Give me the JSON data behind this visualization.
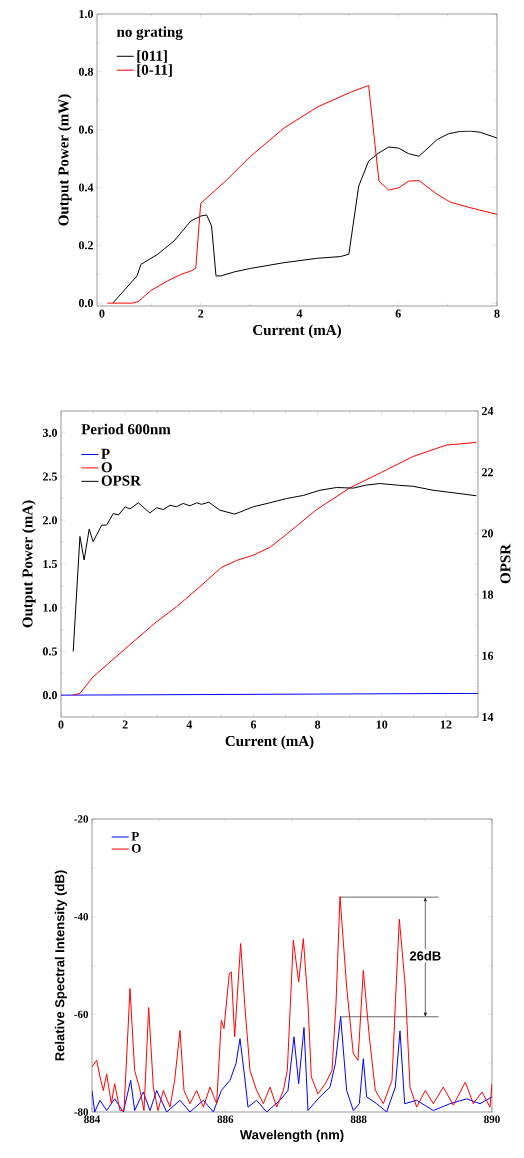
{
  "chart_data": [
    {
      "type": "line",
      "xlabel": "Current (mA)",
      "ylabel": "Output Power (mW)",
      "legend_title": "no grating",
      "legend": "top left",
      "xlim": [
        -0.1,
        8
      ],
      "ylim": [
        -0.01,
        1.0
      ],
      "xticks": [
        0,
        2,
        4,
        6,
        8
      ],
      "yticks": [
        {
          "value": 0,
          "label": "0.0"
        },
        {
          "value": 0.2,
          "label": "0.2"
        },
        {
          "value": 0.4,
          "label": "0.4"
        },
        {
          "value": 0.6,
          "label": "0.6"
        },
        {
          "value": 0.8,
          "label": "0.8"
        },
        {
          "value": 1.0,
          "label": "1.0"
        }
      ],
      "series": [
        {
          "name": "[011]",
          "color": "#000000",
          "x": [
            0.22,
            0.71,
            0.79,
            1.13,
            1.46,
            1.8,
            2.0,
            2.12,
            2.22,
            2.31,
            2.41,
            2.68,
            3.01,
            3.69,
            4.36,
            4.83,
            5.0,
            5.2,
            5.4,
            5.61,
            5.81,
            6.01,
            6.21,
            6.42,
            6.79,
            7.02,
            7.26,
            7.46,
            7.66,
            8.0
          ],
          "values": [
            0,
            0.094,
            0.134,
            0.169,
            0.215,
            0.284,
            0.301,
            0.305,
            0.267,
            0.094,
            0.094,
            0.108,
            0.12,
            0.14,
            0.155,
            0.161,
            0.169,
            0.405,
            0.491,
            0.52,
            0.54,
            0.536,
            0.517,
            0.508,
            0.566,
            0.586,
            0.594,
            0.595,
            0.591,
            0.571
          ]
        },
        {
          "name": "[0-11]",
          "color": "#ff0000",
          "x": [
            0.11,
            0.62,
            0.73,
            0.99,
            1.33,
            1.6,
            1.8,
            1.9,
            2.0,
            2.54,
            3.01,
            3.69,
            4.36,
            5.03,
            5.4,
            5.61,
            5.81,
            6.01,
            6.21,
            6.42,
            6.79,
            7.06,
            7.46,
            8.0
          ],
          "values": [
            0,
            0,
            0.005,
            0.043,
            0.077,
            0.099,
            0.111,
            0.121,
            0.345,
            0.428,
            0.508,
            0.606,
            0.678,
            0.729,
            0.753,
            0.422,
            0.391,
            0.399,
            0.422,
            0.424,
            0.376,
            0.349,
            0.33,
            0.307
          ]
        }
      ]
    },
    {
      "type": "line",
      "xlabel": "Current (mA)",
      "ylabel": "Output Power (mA)",
      "y2label": "OPSR",
      "legend_title": "Period 600nm",
      "legend": "top left",
      "xlim": [
        0,
        13
      ],
      "ylim": [
        -0.25,
        3.25
      ],
      "y2lim": [
        14,
        24
      ],
      "xticks": [
        0,
        2,
        4,
        6,
        8,
        10,
        12
      ],
      "yticks": [
        {
          "value": 0,
          "label": "0.0"
        },
        {
          "value": 0.5,
          "label": "0.5"
        },
        {
          "value": 1.0,
          "label": "1.0"
        },
        {
          "value": 1.5,
          "label": "1.5"
        },
        {
          "value": 2.0,
          "label": "2.0"
        },
        {
          "value": 2.5,
          "label": "2.5"
        },
        {
          "value": 3.0,
          "label": "3.0"
        }
      ],
      "y2ticks": [
        14,
        16,
        18,
        20,
        22,
        24
      ],
      "series": [
        {
          "name": "P",
          "color": "#0000ff",
          "x": [
            0,
            13
          ],
          "values": [
            0,
            0.02
          ]
        },
        {
          "name": "O",
          "color": "#ff0000",
          "x": [
            0.38,
            0.59,
            1.0,
            2.0,
            2.98,
            3.6,
            4.33,
            5.0,
            5.47,
            5.99,
            6.51,
            7.03,
            7.96,
            9.0,
            10.0,
            10.98,
            12.01,
            12.95
          ],
          "values": [
            0,
            0.02,
            0.21,
            0.53,
            0.84,
            1.01,
            1.24,
            1.46,
            1.54,
            1.6,
            1.69,
            1.84,
            2.12,
            2.37,
            2.55,
            2.73,
            2.86,
            2.89
          ]
        },
        {
          "name": "OPSR",
          "color": "#000000",
          "axis": "y2",
          "x": [
            0.38,
            0.59,
            0.72,
            0.88,
            1.0,
            1.27,
            1.42,
            1.63,
            1.79,
            2.0,
            2.15,
            2.41,
            2.77,
            2.98,
            3.19,
            3.4,
            3.6,
            3.81,
            4.02,
            4.23,
            4.38,
            4.61,
            4.95,
            5.42,
            5.99,
            6.51,
            7.03,
            7.55,
            8.07,
            8.59,
            9.11,
            9.52,
            9.94,
            10.56,
            10.98,
            11.6,
            12.22,
            12.95
          ],
          "values": [
            16.14,
            19.9,
            19.13,
            20.14,
            19.73,
            20.27,
            20.27,
            20.65,
            20.6,
            20.87,
            20.8,
            21.0,
            20.67,
            20.84,
            20.78,
            20.92,
            20.87,
            20.98,
            20.9,
            21.0,
            20.95,
            21.02,
            20.76,
            20.63,
            20.87,
            21.0,
            21.14,
            21.24,
            21.41,
            21.5,
            21.48,
            21.58,
            21.63,
            21.57,
            21.54,
            21.41,
            21.33,
            21.23
          ]
        }
      ]
    },
    {
      "type": "line",
      "xlabel": "Wavelength (nm)",
      "ylabel": "Relative Spectral Intensity (dB)",
      "legend": "top left",
      "xlim": [
        884,
        890
      ],
      "ylim": [
        -80,
        -20
      ],
      "xticks": [
        884,
        886,
        888,
        890
      ],
      "yticks": [
        -80,
        -60,
        -40,
        -20
      ],
      "annotations": [
        {
          "text": "26dB",
          "x": 889.0,
          "y": -48
        }
      ],
      "ref_lines": [
        {
          "axis": "y",
          "value": -36,
          "color": "#000000"
        },
        {
          "axis": "y",
          "value": -60.5,
          "color": "#000000"
        }
      ],
      "series": [
        {
          "name": "P",
          "color": "#0000ff",
          "x": [
            884,
            884.04,
            884.12,
            884.22,
            884.34,
            884.47,
            884.58,
            884.64,
            884.77,
            884.87,
            884.97,
            885.12,
            885.32,
            885.47,
            885.67,
            885.82,
            885.94,
            886.07,
            886.16,
            886.22,
            886.29,
            886.34,
            886.47,
            886.62,
            886.82,
            886.94,
            887.03,
            887.1,
            887.18,
            887.24,
            887.39,
            887.57,
            887.65,
            887.73,
            887.82,
            887.92,
            888.01,
            888.07,
            888.12,
            888.27,
            888.42,
            888.55,
            888.62,
            888.69,
            888.87,
            889.12,
            889.37,
            889.62,
            889.82,
            890
          ],
          "values": [
            -75.6,
            -80,
            -77.6,
            -79.7,
            -77.3,
            -80,
            -73.5,
            -79.7,
            -75.9,
            -79.7,
            -75.6,
            -80,
            -77.6,
            -80,
            -77.6,
            -80,
            -75.6,
            -73.5,
            -70.1,
            -65.0,
            -72.8,
            -79.0,
            -77.6,
            -80,
            -77.6,
            -75.6,
            -64.6,
            -74.2,
            -62.7,
            -79.7,
            -77.3,
            -74.9,
            -70.1,
            -60.5,
            -75.6,
            -79.7,
            -78.3,
            -69.1,
            -76.9,
            -78.3,
            -80,
            -74.9,
            -63.4,
            -78.3,
            -77.6,
            -79.7,
            -78.3,
            -77.3,
            -78.3,
            -76.9
          ]
        },
        {
          "name": "O",
          "color": "#ff0000",
          "x": [
            884,
            884.07,
            884.12,
            884.17,
            884.22,
            884.29,
            884.34,
            884.42,
            884.48,
            884.51,
            884.57,
            884.64,
            884.71,
            884.78,
            884.85,
            884.92,
            884.99,
            885.07,
            885.17,
            885.24,
            885.32,
            885.38,
            885.47,
            885.57,
            885.67,
            885.77,
            885.87,
            885.94,
            885.98,
            886.06,
            886.09,
            886.14,
            886.23,
            886.29,
            886.37,
            886.47,
            886.57,
            886.67,
            886.77,
            886.87,
            886.93,
            887.02,
            887.1,
            887.17,
            887.24,
            887.29,
            887.39,
            887.5,
            887.6,
            887.66,
            887.72,
            887.82,
            887.92,
            887.99,
            888.07,
            888.16,
            888.25,
            888.37,
            888.5,
            888.55,
            888.61,
            888.7,
            888.77,
            888.87,
            889.0,
            889.12,
            889.27,
            889.42,
            889.6,
            889.72,
            889.85,
            889.97,
            890
          ],
          "values": [
            -70.8,
            -69.4,
            -72.8,
            -75.6,
            -72.2,
            -78.3,
            -74.2,
            -79.7,
            -79.7,
            -71.5,
            -54.7,
            -71.5,
            -74.9,
            -79.7,
            -58.6,
            -74.9,
            -79.7,
            -75.6,
            -79.0,
            -73.5,
            -63.3,
            -75.6,
            -78.3,
            -75.6,
            -79.0,
            -74.9,
            -78.3,
            -61.2,
            -62.9,
            -51.6,
            -51.3,
            -64.6,
            -45.5,
            -57.8,
            -71.5,
            -75.6,
            -78.3,
            -74.9,
            -79.0,
            -75.6,
            -71.5,
            -44.8,
            -53.4,
            -44.5,
            -57.8,
            -72.8,
            -76.3,
            -74.2,
            -71.5,
            -57.8,
            -35.9,
            -54.4,
            -68.1,
            -69.4,
            -51.0,
            -64.6,
            -75.6,
            -78.3,
            -73.5,
            -57.8,
            -40.5,
            -54.4,
            -74.9,
            -79.0,
            -75.6,
            -78.3,
            -74.9,
            -78.6,
            -73.9,
            -78.3,
            -75.9,
            -79.0,
            -74.2
          ]
        }
      ]
    }
  ]
}
